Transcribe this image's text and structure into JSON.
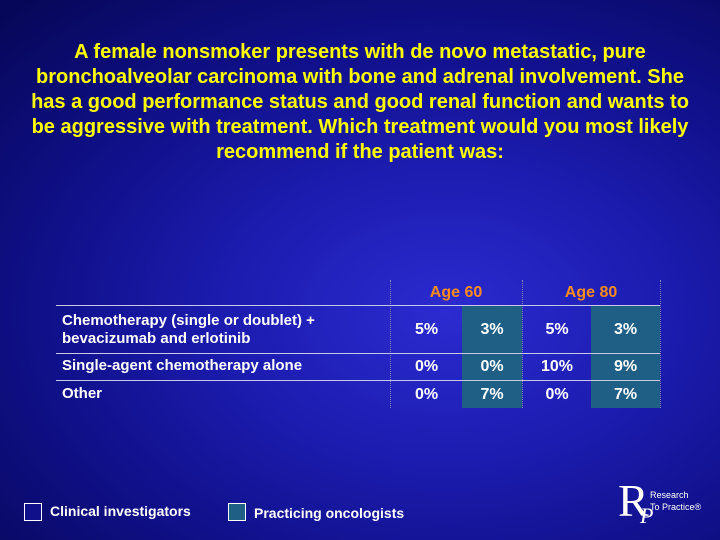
{
  "question": "A female nonsmoker presents with de novo metastatic, pure bronchoalveolar carcinoma with bone and adrenal involvement. She has a good performance status and good renal function and wants to be aggressive with treatment. Which treatment would you most likely recommend if the patient was:",
  "table": {
    "age_headers": [
      "Age 60",
      "Age 80"
    ],
    "rows": [
      {
        "label_lines": [
          "Chemotherapy (single or doublet) +",
          "bevacizumab and erlotinib"
        ],
        "values": [
          "5%",
          "3%",
          "5%",
          "3%"
        ]
      },
      {
        "label_lines": [
          "Single-agent chemotherapy alone"
        ],
        "values": [
          "0%",
          "0%",
          "10%",
          "9%"
        ]
      },
      {
        "label_lines": [
          "Other"
        ],
        "values": [
          "0%",
          "7%",
          "0%",
          "7%"
        ]
      }
    ]
  },
  "legend": {
    "clinical": "Clinical investigators",
    "practicing": "Practicing oncologists",
    "clinical_color": "#10108a",
    "practicing_color": "#1f5f86"
  },
  "logo": {
    "letter_r": "R",
    "letter_p": "P",
    "line1": "Research",
    "line2": "To Practice®"
  }
}
